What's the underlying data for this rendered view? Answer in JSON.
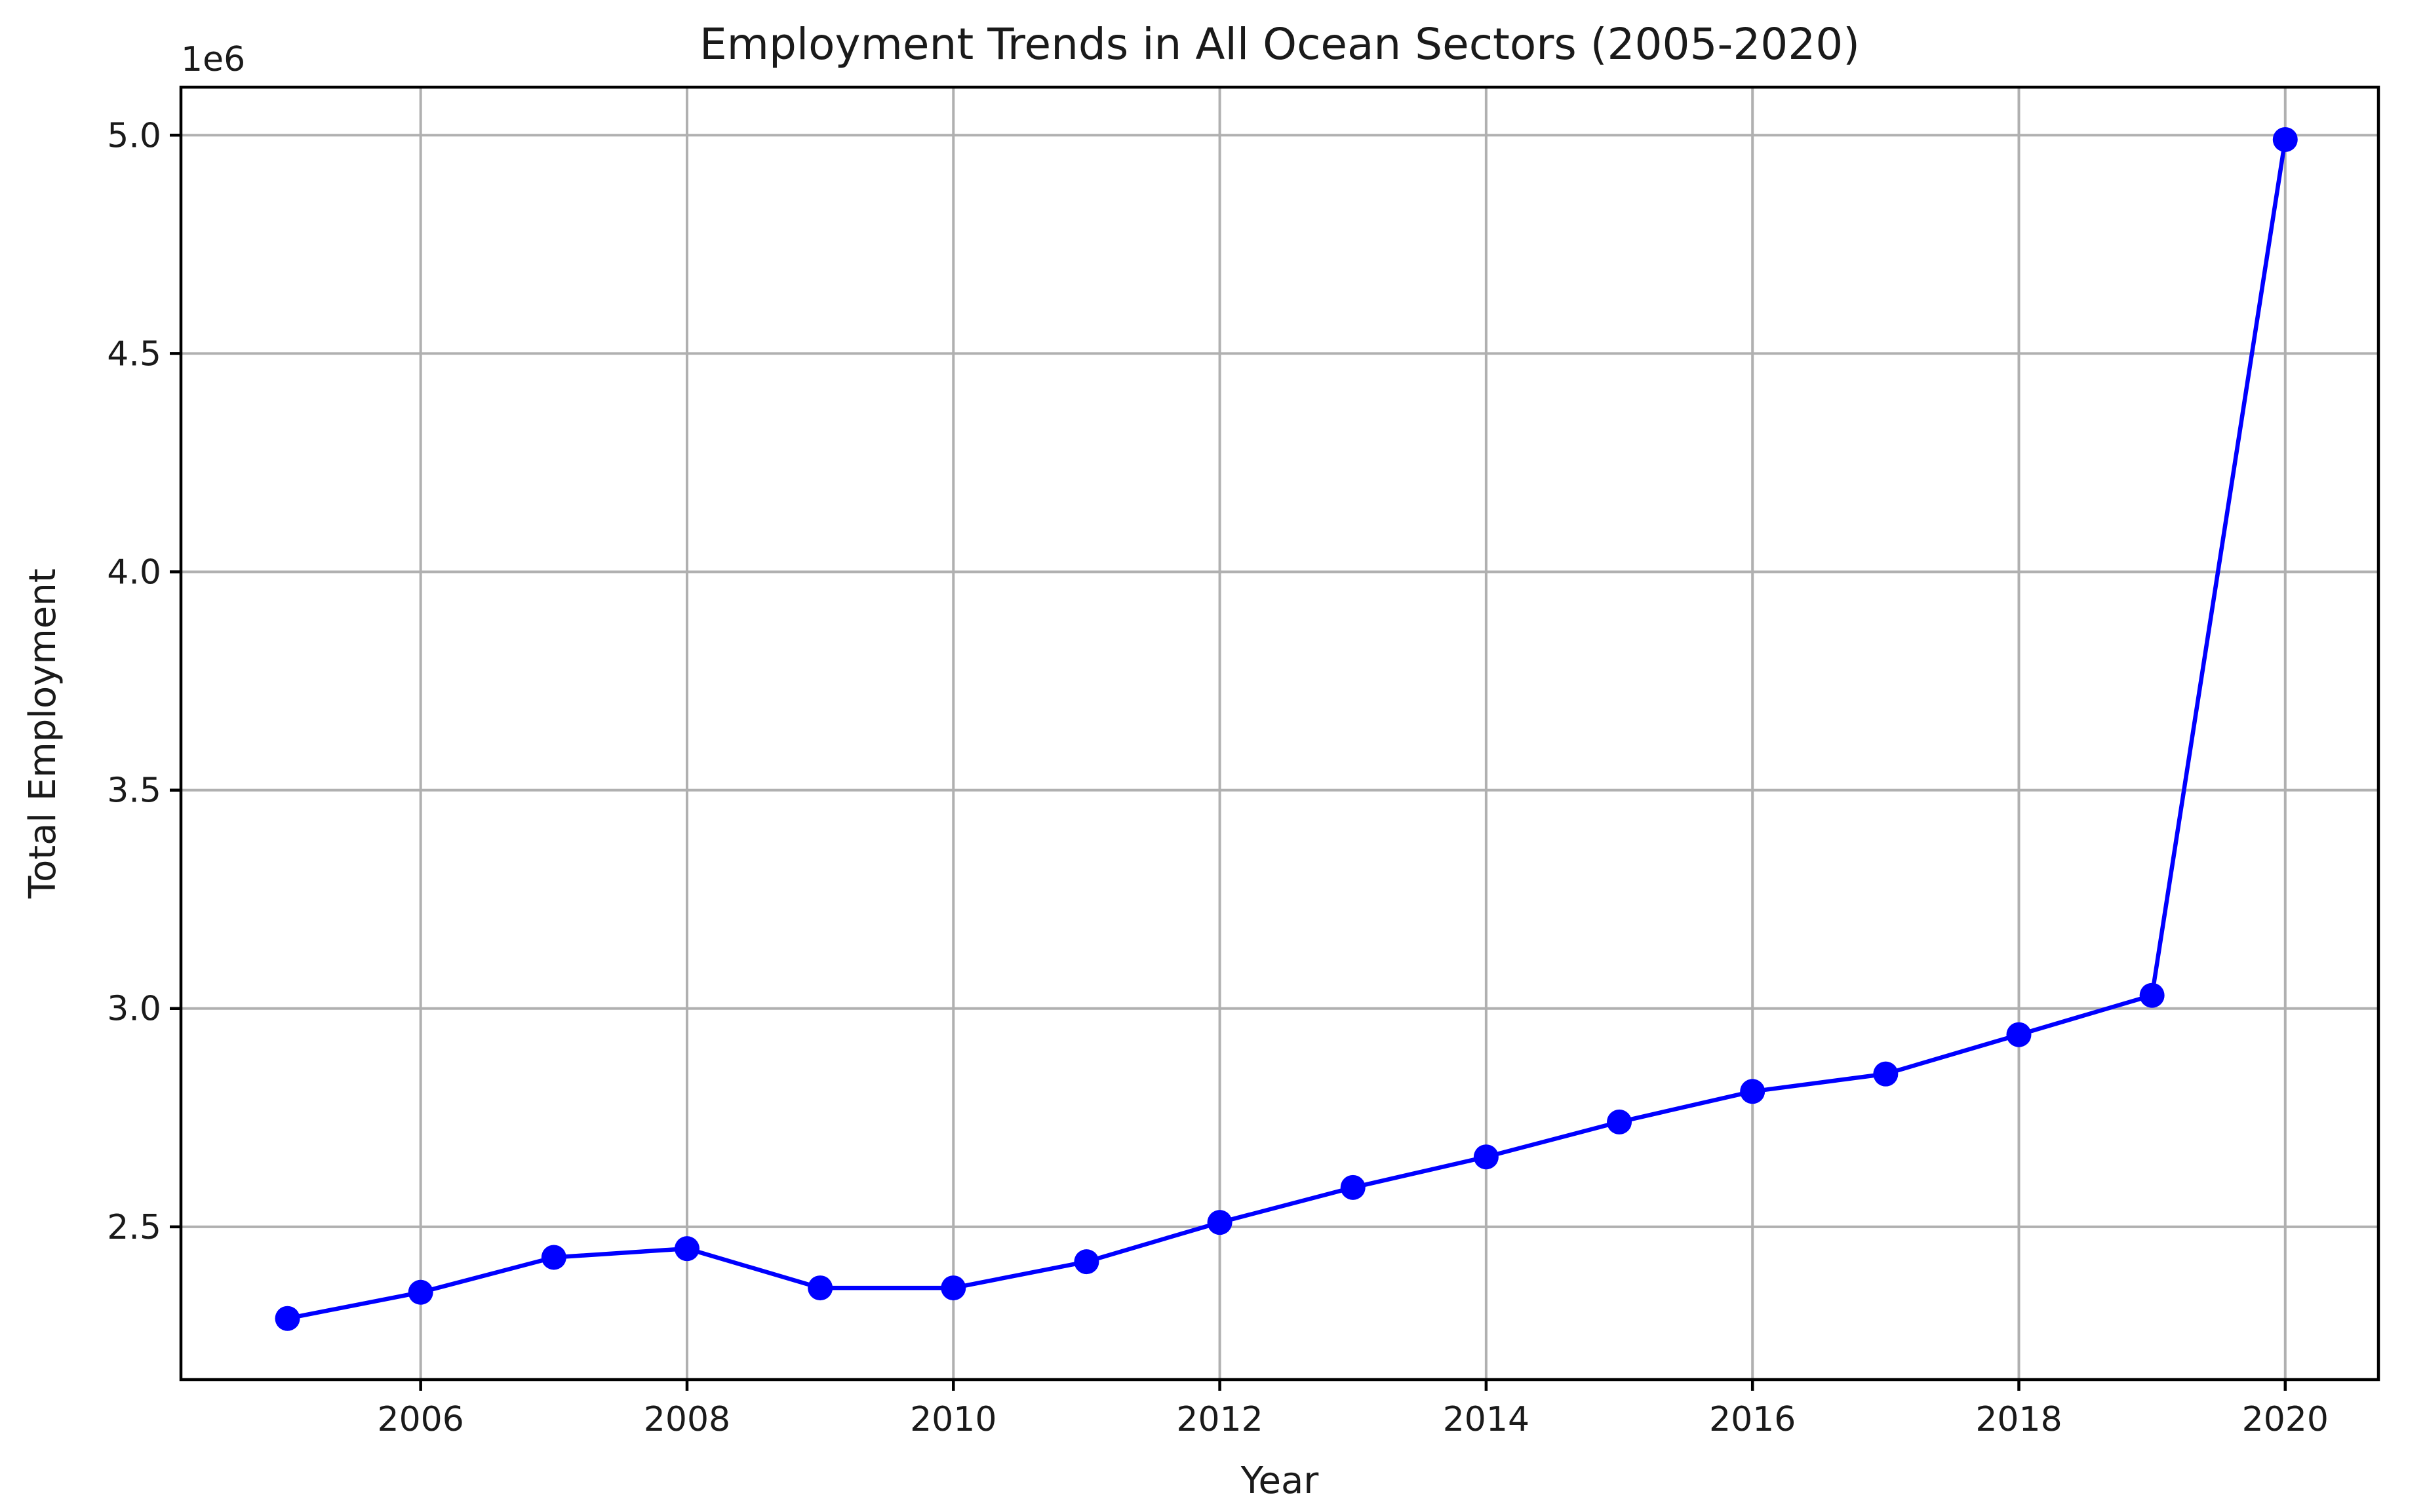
{
  "chart_data": {
    "type": "line",
    "title": "Employment Trends in All Ocean Sectors (2005-2020)",
    "xlabel": "Year",
    "ylabel": "Total Employment",
    "y_offset_label": "1e6",
    "xlim": [
      2004.2,
      2020.7
    ],
    "ylim": [
      2.15,
      5.11
    ],
    "x_ticks": [
      2006,
      2008,
      2010,
      2012,
      2014,
      2016,
      2018,
      2020
    ],
    "y_ticks": [
      2.5,
      3.0,
      3.5,
      4.0,
      4.5,
      5.0
    ],
    "y_tick_labels": [
      "2.5",
      "3.0",
      "3.5",
      "4.0",
      "4.5",
      "5.0"
    ],
    "grid": true,
    "series": [
      {
        "color": "#0000ff",
        "marker": "circle",
        "x": [
          2005,
          2006,
          2007,
          2008,
          2009,
          2010,
          2011,
          2012,
          2013,
          2014,
          2015,
          2016,
          2017,
          2018,
          2019,
          2020
        ],
        "y": [
          2.29,
          2.35,
          2.43,
          2.45,
          2.36,
          2.36,
          2.42,
          2.51,
          2.59,
          2.66,
          2.74,
          2.81,
          2.85,
          2.94,
          3.03,
          4.99
        ]
      }
    ]
  }
}
